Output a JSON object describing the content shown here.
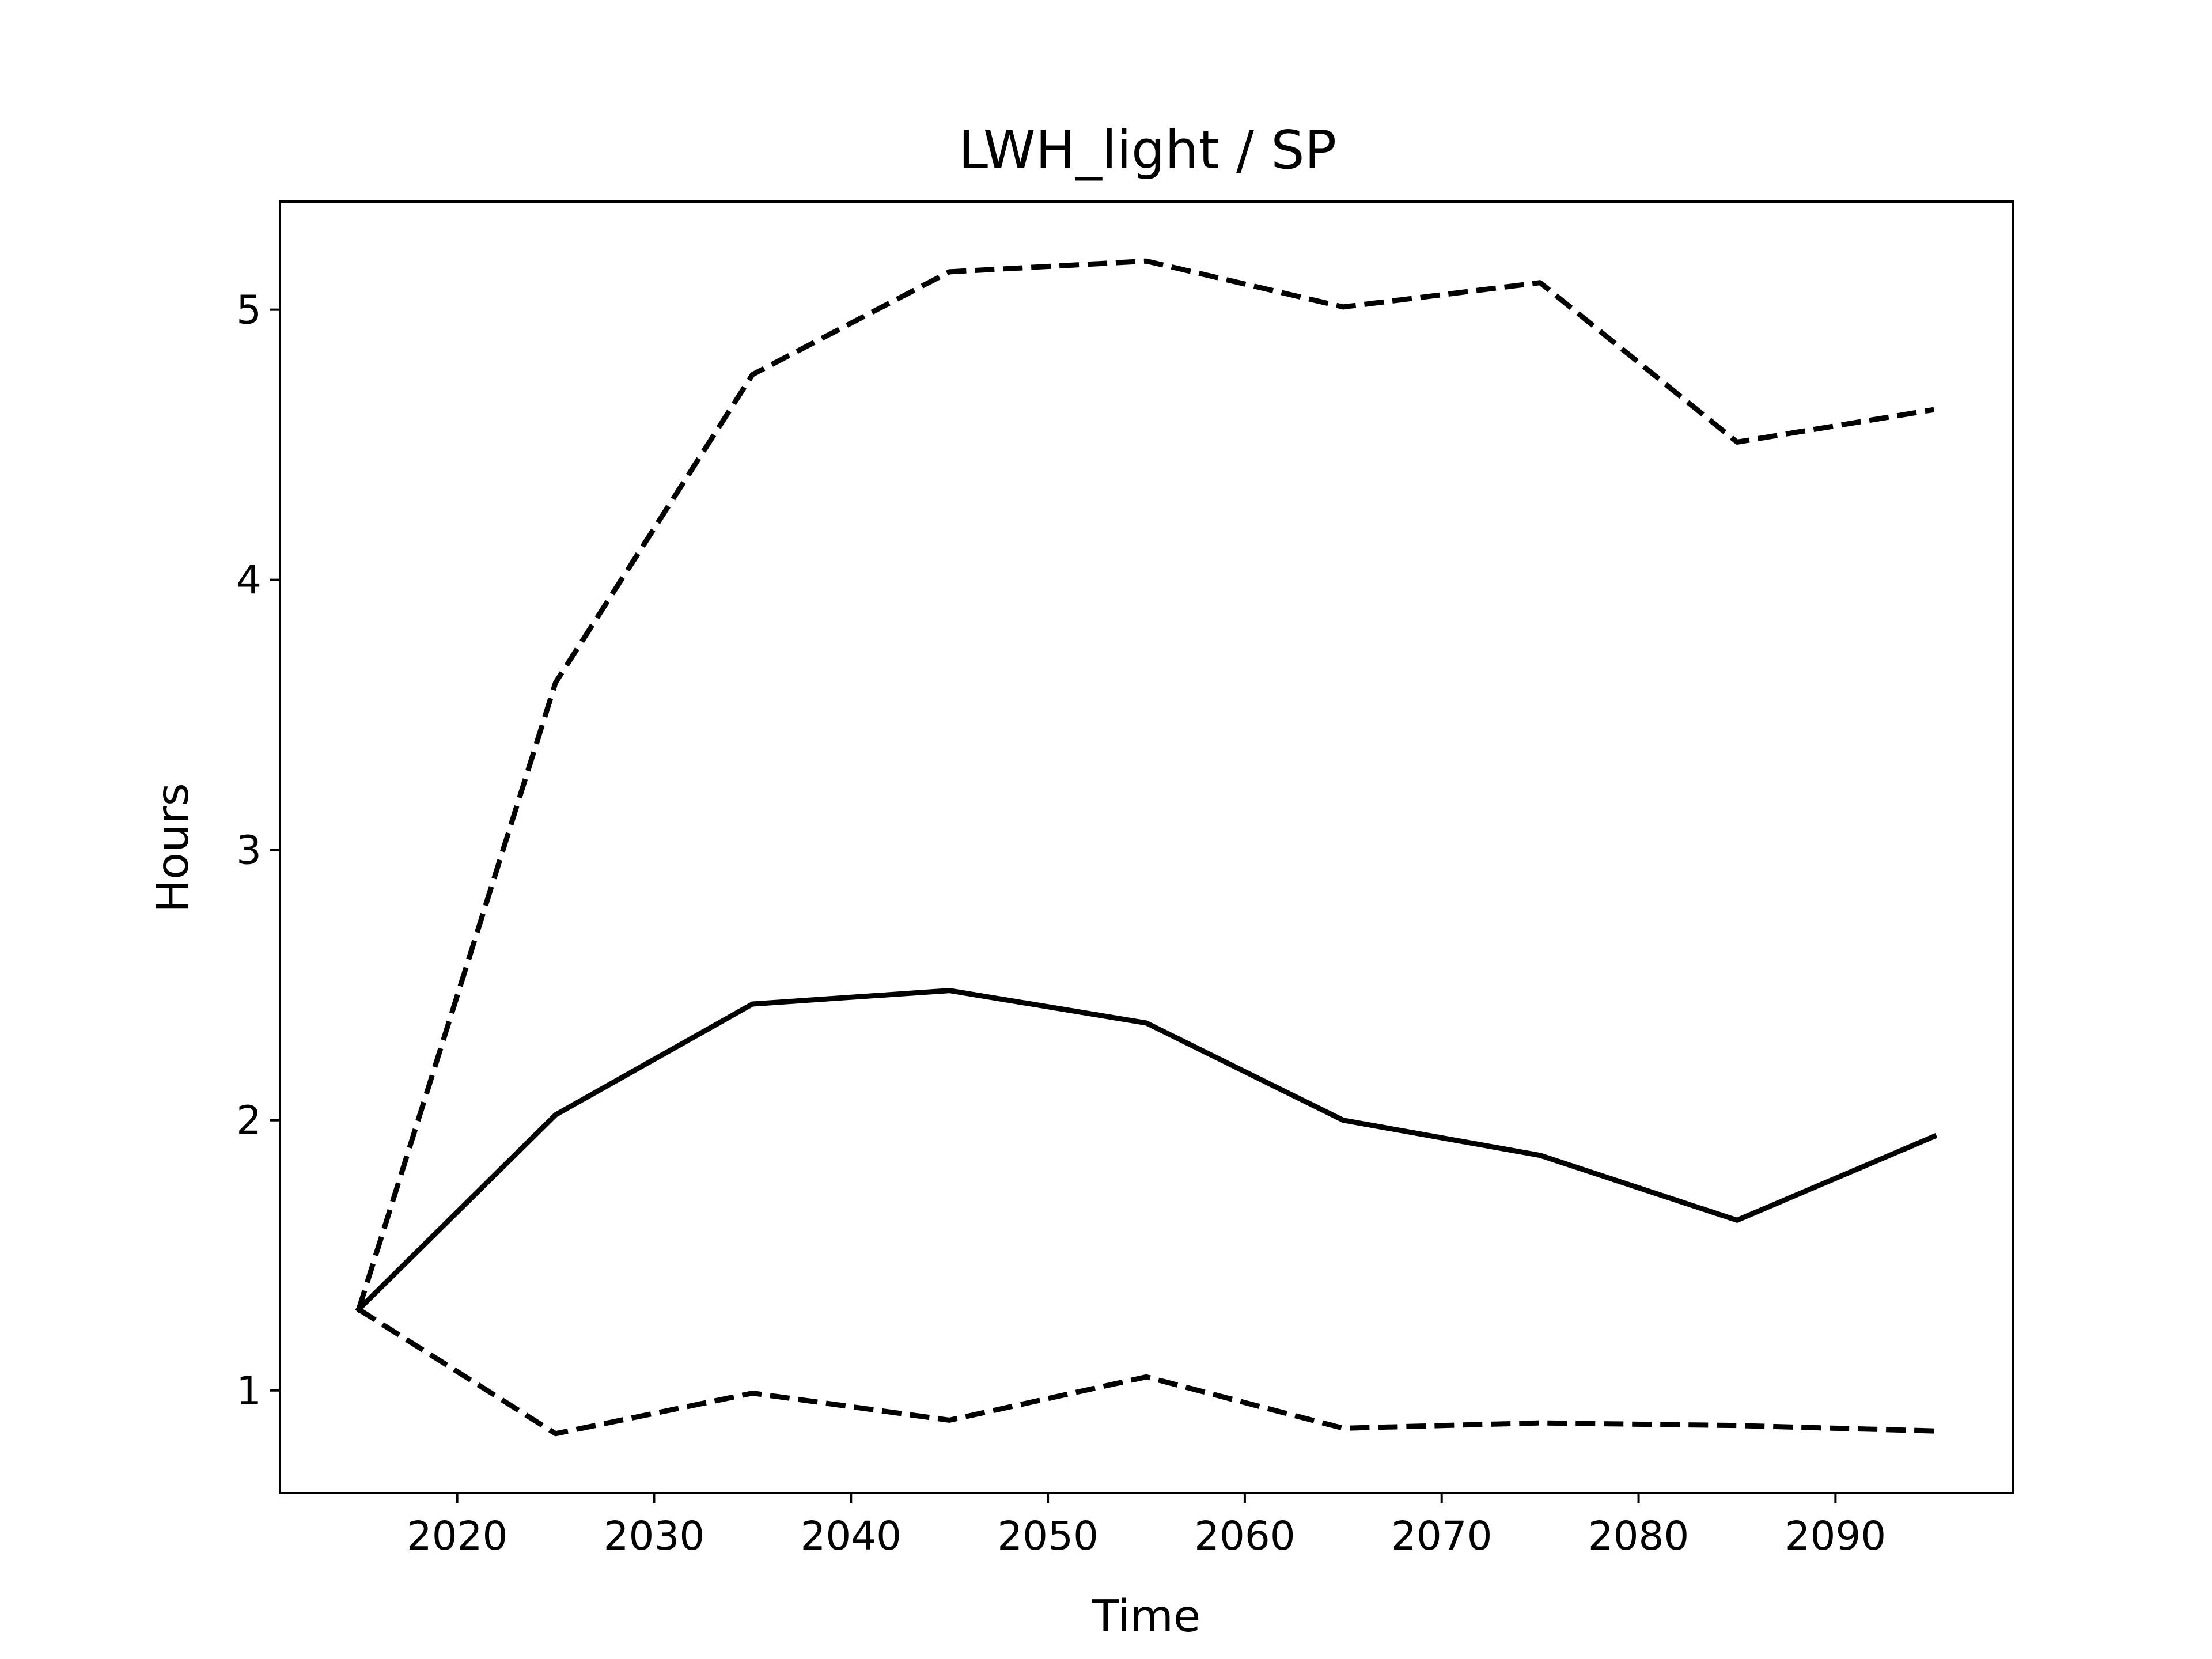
{
  "chart_data": {
    "type": "line",
    "title": "LWH_light / SP",
    "xlabel": "Time",
    "ylabel": "Hours",
    "xlim": [
      2011,
      2099
    ],
    "ylim": [
      0.62,
      5.4
    ],
    "xticks": [
      2020,
      2030,
      2040,
      2050,
      2060,
      2070,
      2080,
      2090
    ],
    "yticks": [
      1,
      2,
      3,
      4,
      5
    ],
    "grid": false,
    "legend": "none",
    "x": [
      2015,
      2025,
      2035,
      2045,
      2055,
      2065,
      2075,
      2085,
      2095
    ],
    "series": [
      {
        "style": "solid",
        "color": "#000000",
        "values": [
          1.3,
          2.02,
          2.43,
          2.48,
          2.36,
          2.0,
          1.87,
          1.63,
          1.94
        ]
      },
      {
        "style": "dashed",
        "color": "#000000",
        "values": [
          1.3,
          3.62,
          4.76,
          5.14,
          5.18,
          5.01,
          5.1,
          4.51,
          4.63
        ]
      },
      {
        "style": "dashed",
        "color": "#000000",
        "values": [
          1.3,
          0.84,
          0.99,
          0.89,
          1.05,
          0.86,
          0.88,
          0.87,
          0.85
        ]
      }
    ]
  }
}
